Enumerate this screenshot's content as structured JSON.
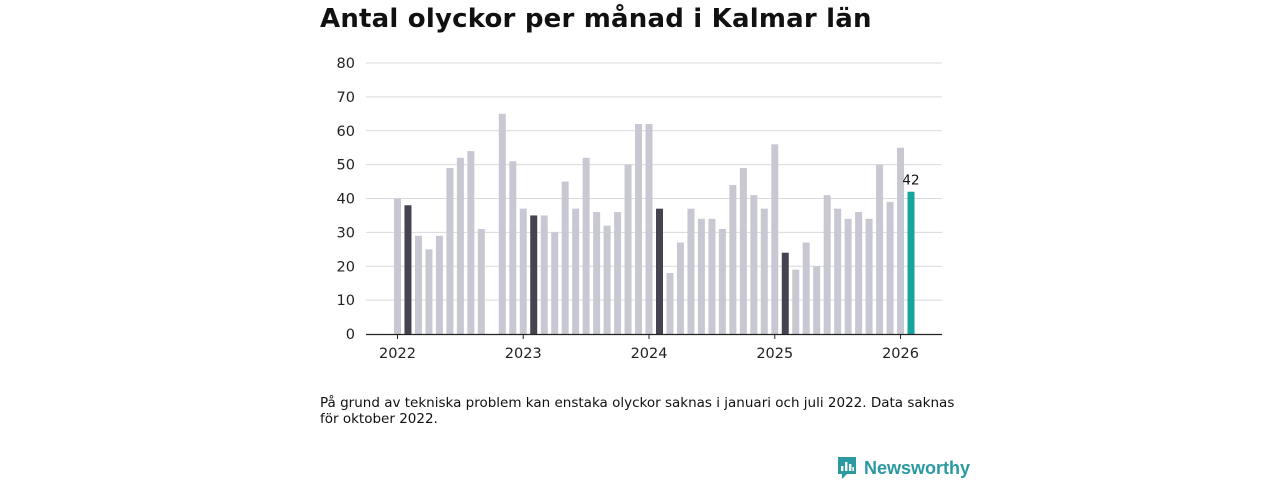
{
  "chart_data": {
    "type": "bar",
    "title": "Antal olyckor per månad i Kalmar län",
    "xlabel": "",
    "ylabel": "",
    "ylim": [
      0,
      80
    ],
    "yticks": [
      0,
      10,
      20,
      30,
      40,
      50,
      60,
      70,
      80
    ],
    "xticks": [
      {
        "label": "2022",
        "index": 0
      },
      {
        "label": "2023",
        "index": 12
      },
      {
        "label": "2024",
        "index": 24
      },
      {
        "label": "2025",
        "index": 36
      },
      {
        "label": "2026",
        "index": 48
      }
    ],
    "months": [
      "2022-01",
      "2022-02",
      "2022-03",
      "2022-04",
      "2022-05",
      "2022-06",
      "2022-07",
      "2022-08",
      "2022-09",
      "2022-10",
      "2022-11",
      "2022-12",
      "2023-01",
      "2023-02",
      "2023-03",
      "2023-04",
      "2023-05",
      "2023-06",
      "2023-07",
      "2023-08",
      "2023-09",
      "2023-10",
      "2023-11",
      "2023-12",
      "2024-01",
      "2024-02",
      "2024-03",
      "2024-04",
      "2024-05",
      "2024-06",
      "2024-07",
      "2024-08",
      "2024-09",
      "2024-10",
      "2024-11",
      "2024-12",
      "2025-01",
      "2025-02",
      "2025-03",
      "2025-04",
      "2025-05",
      "2025-06",
      "2025-07",
      "2025-08",
      "2025-09",
      "2025-10",
      "2025-11",
      "2025-12",
      "2026-01",
      "2026-02"
    ],
    "values": [
      40,
      38,
      29,
      25,
      29,
      49,
      52,
      54,
      31,
      null,
      65,
      51,
      37,
      35,
      35,
      30,
      45,
      37,
      52,
      36,
      32,
      36,
      50,
      62,
      62,
      37,
      18,
      27,
      37,
      34,
      34,
      31,
      44,
      49,
      41,
      37,
      56,
      24,
      19,
      27,
      20,
      41,
      37,
      34,
      36,
      34,
      50,
      39,
      55,
      42
    ],
    "highlight_indices": [
      1,
      13,
      25,
      37
    ],
    "latest_index": 49,
    "latest_label": "42",
    "colors": {
      "default": "#c8c8d2",
      "highlight": "#44434f",
      "latest": "#17a39e",
      "grid": "#d9d9de",
      "axis": "#222222",
      "tick_text": "#222222"
    }
  },
  "footnote": "På grund av tekniska problem kan enstaka olyckor saknas i januari och juli 2022. Data saknas för oktober 2022.",
  "brand": {
    "name": "Newsworthy",
    "icon": "newsworthy-logo-icon",
    "color": "#2a9aa0"
  }
}
